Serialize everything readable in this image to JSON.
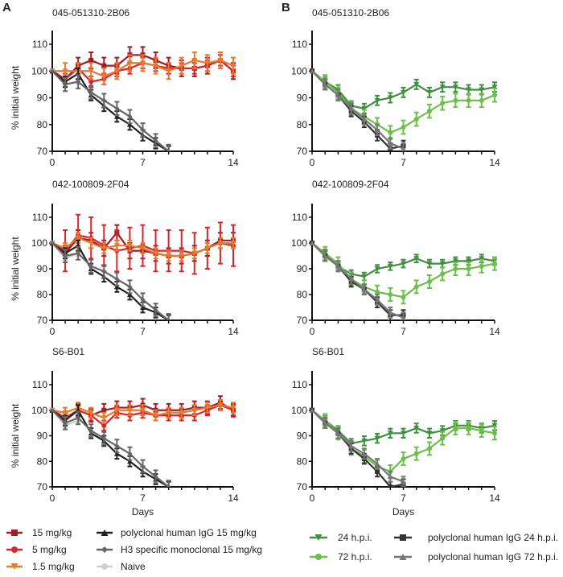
{
  "figure": {
    "panel_letters": [
      "A",
      "B"
    ]
  },
  "styles": {
    "15 mg/kg": {
      "color": "#a11c24",
      "marker": "square"
    },
    "5 mg/kg": {
      "color": "#d8262c",
      "marker": "circle"
    },
    "1.5 mg/kg": {
      "color": "#e77a2e",
      "marker": "triangle-down"
    },
    "Naive": {
      "color": "#cfcfcf",
      "marker": "circle"
    },
    "polyclonal human IgG 15 mg/kg": {
      "color": "#222222",
      "marker": "triangle-up"
    },
    "H3 specific monoclonal 15 mg/kg": {
      "color": "#666666",
      "marker": "diamond"
    },
    "24 h.p.i.": {
      "color": "#3f8f3f",
      "marker": "triangle-down"
    },
    "72 h.p.i.": {
      "color": "#6dbf4b",
      "marker": "circle"
    },
    "polyclonal human IgG 24 h.p.i.": {
      "color": "#333333",
      "marker": "square"
    },
    "polyclonal human IgG 72 h.p.i.": {
      "color": "#777777",
      "marker": "triangle-up"
    }
  },
  "legend": {
    "A": [
      [
        "15 mg/kg",
        "5 mg/kg",
        "1.5 mg/kg"
      ],
      [
        "polyclonal human IgG 15 mg/kg",
        "H3 specific monoclonal 15 mg/kg",
        "Naive"
      ]
    ],
    "B": [
      [
        "24 h.p.i.",
        "72 h.p.i."
      ],
      [
        "polyclonal human IgG 24 h.p.i.",
        "polyclonal human IgG 72 h.p.i."
      ]
    ]
  },
  "chart_data": [
    {
      "panel": "A",
      "type": "line",
      "title": "045-051310-2B06",
      "ylabel": "% initial weight",
      "xlabel": "",
      "xlim": [
        0,
        14
      ],
      "ylim": [
        70,
        110
      ],
      "xticks": [
        0,
        7,
        14
      ],
      "yticks": [
        70,
        80,
        90,
        100,
        110
      ],
      "series": [
        {
          "name": "15 mg/kg",
          "x": [
            0,
            1,
            2,
            3,
            4,
            5,
            6,
            7,
            8,
            9,
            10,
            11,
            12,
            13,
            14
          ],
          "y": [
            100,
            97,
            102,
            104,
            102,
            102,
            106,
            106,
            104,
            102,
            101,
            101,
            102,
            104,
            100
          ],
          "err": 3
        },
        {
          "name": "5 mg/kg",
          "x": [
            0,
            1,
            2,
            3,
            4,
            5,
            6,
            7,
            8,
            9,
            10,
            11,
            12,
            13,
            14
          ],
          "y": [
            100,
            97,
            101,
            96,
            97,
            100,
            101,
            103,
            102,
            101,
            101,
            101,
            102,
            104,
            100
          ],
          "err": 2
        },
        {
          "name": "1.5 mg/kg",
          "x": [
            0,
            1,
            2,
            3,
            4,
            5,
            6,
            7,
            8,
            9,
            10,
            11,
            12,
            13,
            14
          ],
          "y": [
            100,
            100,
            100,
            100,
            98,
            100,
            103,
            103,
            102,
            100,
            102,
            104,
            103,
            104,
            102
          ],
          "err": 3
        },
        {
          "name": "Naive",
          "x": [
            0,
            1,
            2
          ],
          "y": [
            100,
            95,
            96
          ],
          "err": 1
        },
        {
          "name": "polyclonal human IgG 15 mg/kg",
          "x": [
            0,
            1,
            2,
            3,
            4,
            5,
            6,
            7,
            8,
            9
          ],
          "y": [
            100,
            96,
            99,
            91,
            87,
            83,
            80,
            76,
            73,
            70
          ],
          "err": 2
        },
        {
          "name": "H3 specific monoclonal 15 mg/kg",
          "x": [
            0,
            1,
            2,
            3,
            4,
            5,
            6,
            7,
            8,
            9
          ],
          "y": [
            100,
            95,
            96,
            92,
            89,
            86,
            83,
            78,
            74,
            70
          ],
          "err": 2.5
        }
      ]
    },
    {
      "panel": "B",
      "type": "line",
      "title": "045-051310-2B06",
      "ylabel": "",
      "xlabel": "",
      "xlim": [
        0,
        14
      ],
      "ylim": [
        70,
        110
      ],
      "xticks": [
        0,
        7,
        14
      ],
      "yticks": [
        70,
        80,
        90,
        100,
        110
      ],
      "series": [
        {
          "name": "24 h.p.i.",
          "x": [
            0,
            1,
            2,
            3,
            4,
            5,
            6,
            7,
            8,
            9,
            10,
            11,
            12,
            13,
            14
          ],
          "y": [
            100,
            96,
            93,
            87,
            86,
            89,
            90,
            92,
            95,
            92,
            94,
            94,
            93,
            93,
            94
          ],
          "err": 1.8
        },
        {
          "name": "72 h.p.i.",
          "x": [
            0,
            1,
            2,
            3,
            4,
            5,
            6,
            7,
            8,
            9,
            10,
            11,
            12,
            13,
            14
          ],
          "y": [
            100,
            96,
            92,
            86,
            83,
            80,
            77,
            79,
            82,
            85,
            88,
            89,
            89,
            89,
            91
          ],
          "err": 2.5
        },
        {
          "name": "polyclonal human IgG 24 h.p.i.",
          "x": [
            0,
            1,
            2,
            3,
            4,
            5,
            6,
            7
          ],
          "y": [
            100,
            95,
            91,
            85,
            81,
            76,
            71,
            72
          ],
          "err": 2
        },
        {
          "name": "polyclonal human IgG 72 h.p.i.",
          "x": [
            0,
            1,
            2,
            3,
            4,
            5,
            6,
            7
          ],
          "y": [
            100,
            95,
            91,
            86,
            82,
            78,
            73,
            71
          ],
          "err": 2
        }
      ]
    },
    {
      "panel": "A",
      "type": "line",
      "title": "042-100809-2F04",
      "ylabel": "% initial weight",
      "xlabel": "",
      "xlim": [
        0,
        14
      ],
      "ylim": [
        70,
        110
      ],
      "xticks": [
        0,
        7,
        14
      ],
      "yticks": [
        70,
        80,
        90,
        100,
        110
      ],
      "series": [
        {
          "name": "15 mg/kg",
          "x": [
            0,
            1,
            2,
            3,
            4,
            5,
            6,
            7,
            8,
            9,
            10,
            11,
            12,
            13,
            14
          ],
          "y": [
            100,
            96,
            102,
            101,
            98,
            104,
            97,
            97,
            96,
            95,
            95,
            96,
            98,
            101,
            101
          ],
          "err": 3
        },
        {
          "name": "5 mg/kg",
          "x": [
            0,
            1,
            2,
            3,
            4,
            5,
            6,
            7,
            8,
            9,
            10,
            11,
            12,
            13,
            14
          ],
          "y": [
            100,
            97,
            103,
            102,
            99,
            97,
            98,
            99,
            97,
            97,
            97,
            96,
            98,
            100,
            99
          ],
          "err": 8
        },
        {
          "name": "1.5 mg/kg",
          "x": [
            0,
            1,
            2,
            3,
            4,
            5,
            6,
            7,
            8,
            9,
            10,
            11,
            12,
            13,
            14
          ],
          "y": [
            100,
            98,
            102,
            100,
            98,
            99,
            99,
            98,
            96,
            95,
            95,
            96,
            98,
            100,
            100
          ],
          "err": 2
        },
        {
          "name": "Naive",
          "x": [
            0,
            1,
            2
          ],
          "y": [
            100,
            94,
            96
          ],
          "err": 1
        },
        {
          "name": "polyclonal human IgG 15 mg/kg",
          "x": [
            0,
            1,
            2,
            3,
            4,
            5,
            6,
            7,
            8,
            9
          ],
          "y": [
            100,
            96,
            99,
            90,
            87,
            83,
            80,
            75,
            73,
            70
          ],
          "err": 2
        },
        {
          "name": "H3 specific monoclonal 15 mg/kg",
          "x": [
            0,
            1,
            2,
            3,
            4,
            5,
            6,
            7,
            8,
            9
          ],
          "y": [
            100,
            95,
            96,
            91,
            89,
            86,
            83,
            78,
            74,
            70
          ],
          "err": 2.5
        }
      ]
    },
    {
      "panel": "B",
      "type": "line",
      "title": "042-100809-2F04",
      "ylabel": "",
      "xlabel": "",
      "xlim": [
        0,
        14
      ],
      "ylim": [
        70,
        110
      ],
      "xticks": [
        0,
        7,
        14
      ],
      "yticks": [
        70,
        80,
        90,
        100,
        110
      ],
      "series": [
        {
          "name": "24 h.p.i.",
          "x": [
            0,
            1,
            2,
            3,
            4,
            5,
            6,
            7,
            8,
            9,
            10,
            11,
            12,
            13,
            14
          ],
          "y": [
            100,
            96,
            91,
            88,
            87,
            90,
            91,
            92,
            94,
            92,
            92,
            93,
            93,
            94,
            93
          ],
          "err": 1.5
        },
        {
          "name": "72 h.p.i.",
          "x": [
            0,
            1,
            2,
            3,
            4,
            5,
            6,
            7,
            8,
            9,
            10,
            11,
            12,
            13,
            14
          ],
          "y": [
            100,
            96,
            92,
            86,
            83,
            81,
            80,
            79,
            83,
            85,
            88,
            90,
            90,
            91,
            92
          ],
          "err": 2.5
        },
        {
          "name": "polyclonal human IgG 24 h.p.i.",
          "x": [
            0,
            1,
            2,
            3,
            4,
            5,
            6,
            7
          ],
          "y": [
            100,
            95,
            91,
            85,
            82,
            77,
            72,
            72
          ],
          "err": 2
        },
        {
          "name": "polyclonal human IgG 72 h.p.i.",
          "x": [
            0,
            1,
            2,
            3,
            4,
            5,
            6,
            7
          ],
          "y": [
            100,
            95,
            91,
            86,
            82,
            78,
            73,
            71
          ],
          "err": 2
        }
      ]
    },
    {
      "panel": "A",
      "type": "line",
      "title": "S6-B01",
      "ylabel": "% initial weight",
      "xlabel": "Days",
      "xlim": [
        0,
        14
      ],
      "ylim": [
        70,
        110
      ],
      "xticks": [
        0,
        7,
        14
      ],
      "yticks": [
        70,
        80,
        90,
        100,
        110
      ],
      "series": [
        {
          "name": "15 mg/kg",
          "x": [
            0,
            1,
            2,
            3,
            4,
            5,
            6,
            7,
            8,
            9,
            10,
            11,
            12,
            13,
            14
          ],
          "y": [
            100,
            97,
            100,
            98,
            100,
            101,
            101,
            102,
            100,
            100,
            100,
            101,
            101,
            103,
            100
          ],
          "err": 2.5
        },
        {
          "name": "5 mg/kg",
          "x": [
            0,
            1,
            2,
            3,
            4,
            5,
            6,
            7,
            8,
            9,
            10,
            11,
            12,
            13,
            14
          ],
          "y": [
            100,
            97,
            100,
            98,
            94,
            99,
            98,
            99,
            98,
            98,
            98,
            98,
            100,
            102,
            100
          ],
          "err": 2
        },
        {
          "name": "1.5 mg/kg",
          "x": [
            0,
            1,
            2,
            3,
            4,
            5,
            6,
            7,
            8,
            9,
            10,
            11,
            12,
            13,
            14
          ],
          "y": [
            100,
            99,
            101,
            99,
            97,
            100,
            100,
            100,
            98,
            99,
            99,
            100,
            101,
            102,
            101
          ],
          "err": 2
        },
        {
          "name": "Naive",
          "x": [
            0,
            1,
            2
          ],
          "y": [
            100,
            94,
            96
          ],
          "err": 1
        },
        {
          "name": "polyclonal human IgG 15 mg/kg",
          "x": [
            0,
            1,
            2,
            3,
            4,
            5,
            6,
            7,
            8,
            9
          ],
          "y": [
            100,
            96,
            100,
            91,
            88,
            83,
            80,
            76,
            73,
            70
          ],
          "err": 2
        },
        {
          "name": "H3 specific monoclonal 15 mg/kg",
          "x": [
            0,
            1,
            2,
            3,
            4,
            5,
            6,
            7,
            8,
            9
          ],
          "y": [
            100,
            95,
            97,
            92,
            89,
            86,
            83,
            78,
            74,
            70
          ],
          "err": 2.5
        }
      ]
    },
    {
      "panel": "B",
      "type": "line",
      "title": "S6-B01",
      "ylabel": "",
      "xlabel": "Days",
      "xlim": [
        0,
        14
      ],
      "ylim": [
        70,
        110
      ],
      "xticks": [
        0,
        7,
        14
      ],
      "yticks": [
        70,
        80,
        90,
        100,
        110
      ],
      "series": [
        {
          "name": "24 h.p.i.",
          "x": [
            0,
            1,
            2,
            3,
            4,
            5,
            6,
            7,
            8,
            9,
            10,
            11,
            12,
            13,
            14
          ],
          "y": [
            100,
            96,
            92,
            87,
            88,
            89,
            91,
            91,
            93,
            91,
            92,
            94,
            94,
            93,
            94
          ],
          "err": 1.8
        },
        {
          "name": "72 h.p.i.",
          "x": [
            0,
            1,
            2,
            3,
            4,
            5,
            6,
            7,
            8,
            9,
            10,
            11,
            12,
            13,
            14
          ],
          "y": [
            100,
            96,
            91,
            85,
            82,
            78,
            76,
            81,
            83,
            85,
            89,
            93,
            93,
            92,
            91
          ],
          "err": 2.5
        },
        {
          "name": "polyclonal human IgG 24 h.p.i.",
          "x": [
            0,
            1,
            2,
            3,
            4,
            5,
            6,
            7
          ],
          "y": [
            100,
            95,
            91,
            85,
            81,
            76,
            70,
            71
          ],
          "err": 2
        },
        {
          "name": "polyclonal human IgG 72 h.p.i.",
          "x": [
            0,
            1,
            2,
            3,
            4,
            5,
            6,
            7
          ],
          "y": [
            100,
            95,
            91,
            86,
            83,
            79,
            74,
            72
          ],
          "err": 2
        }
      ]
    }
  ]
}
